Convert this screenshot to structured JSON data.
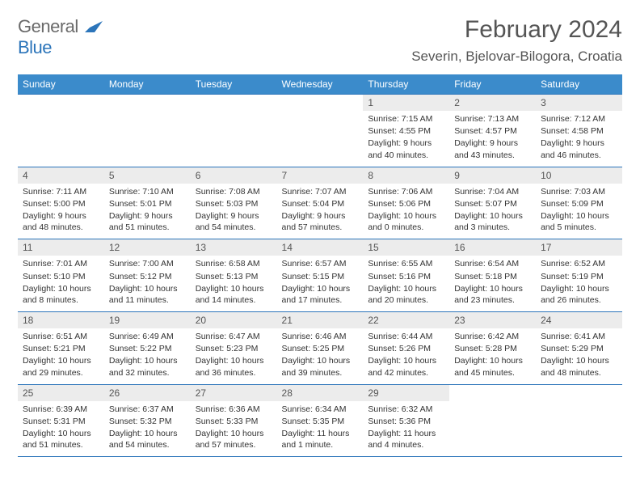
{
  "logo": {
    "text1": "General",
    "text2": "Blue"
  },
  "title": "February 2024",
  "location": "Severin, Bjelovar-Bilogora, Croatia",
  "colors": {
    "header_bg": "#3b8bcb",
    "border": "#2c75ba",
    "daynum_bg": "#ececec",
    "text": "#333333",
    "title_text": "#555555"
  },
  "day_labels": [
    "Sunday",
    "Monday",
    "Tuesday",
    "Wednesday",
    "Thursday",
    "Friday",
    "Saturday"
  ],
  "weeks": [
    [
      null,
      null,
      null,
      null,
      {
        "n": "1",
        "sr": "Sunrise: 7:15 AM",
        "ss": "Sunset: 4:55 PM",
        "dl": "Daylight: 9 hours and 40 minutes."
      },
      {
        "n": "2",
        "sr": "Sunrise: 7:13 AM",
        "ss": "Sunset: 4:57 PM",
        "dl": "Daylight: 9 hours and 43 minutes."
      },
      {
        "n": "3",
        "sr": "Sunrise: 7:12 AM",
        "ss": "Sunset: 4:58 PM",
        "dl": "Daylight: 9 hours and 46 minutes."
      }
    ],
    [
      {
        "n": "4",
        "sr": "Sunrise: 7:11 AM",
        "ss": "Sunset: 5:00 PM",
        "dl": "Daylight: 9 hours and 48 minutes."
      },
      {
        "n": "5",
        "sr": "Sunrise: 7:10 AM",
        "ss": "Sunset: 5:01 PM",
        "dl": "Daylight: 9 hours and 51 minutes."
      },
      {
        "n": "6",
        "sr": "Sunrise: 7:08 AM",
        "ss": "Sunset: 5:03 PM",
        "dl": "Daylight: 9 hours and 54 minutes."
      },
      {
        "n": "7",
        "sr": "Sunrise: 7:07 AM",
        "ss": "Sunset: 5:04 PM",
        "dl": "Daylight: 9 hours and 57 minutes."
      },
      {
        "n": "8",
        "sr": "Sunrise: 7:06 AM",
        "ss": "Sunset: 5:06 PM",
        "dl": "Daylight: 10 hours and 0 minutes."
      },
      {
        "n": "9",
        "sr": "Sunrise: 7:04 AM",
        "ss": "Sunset: 5:07 PM",
        "dl": "Daylight: 10 hours and 3 minutes."
      },
      {
        "n": "10",
        "sr": "Sunrise: 7:03 AM",
        "ss": "Sunset: 5:09 PM",
        "dl": "Daylight: 10 hours and 5 minutes."
      }
    ],
    [
      {
        "n": "11",
        "sr": "Sunrise: 7:01 AM",
        "ss": "Sunset: 5:10 PM",
        "dl": "Daylight: 10 hours and 8 minutes."
      },
      {
        "n": "12",
        "sr": "Sunrise: 7:00 AM",
        "ss": "Sunset: 5:12 PM",
        "dl": "Daylight: 10 hours and 11 minutes."
      },
      {
        "n": "13",
        "sr": "Sunrise: 6:58 AM",
        "ss": "Sunset: 5:13 PM",
        "dl": "Daylight: 10 hours and 14 minutes."
      },
      {
        "n": "14",
        "sr": "Sunrise: 6:57 AM",
        "ss": "Sunset: 5:15 PM",
        "dl": "Daylight: 10 hours and 17 minutes."
      },
      {
        "n": "15",
        "sr": "Sunrise: 6:55 AM",
        "ss": "Sunset: 5:16 PM",
        "dl": "Daylight: 10 hours and 20 minutes."
      },
      {
        "n": "16",
        "sr": "Sunrise: 6:54 AM",
        "ss": "Sunset: 5:18 PM",
        "dl": "Daylight: 10 hours and 23 minutes."
      },
      {
        "n": "17",
        "sr": "Sunrise: 6:52 AM",
        "ss": "Sunset: 5:19 PM",
        "dl": "Daylight: 10 hours and 26 minutes."
      }
    ],
    [
      {
        "n": "18",
        "sr": "Sunrise: 6:51 AM",
        "ss": "Sunset: 5:21 PM",
        "dl": "Daylight: 10 hours and 29 minutes."
      },
      {
        "n": "19",
        "sr": "Sunrise: 6:49 AM",
        "ss": "Sunset: 5:22 PM",
        "dl": "Daylight: 10 hours and 32 minutes."
      },
      {
        "n": "20",
        "sr": "Sunrise: 6:47 AM",
        "ss": "Sunset: 5:23 PM",
        "dl": "Daylight: 10 hours and 36 minutes."
      },
      {
        "n": "21",
        "sr": "Sunrise: 6:46 AM",
        "ss": "Sunset: 5:25 PM",
        "dl": "Daylight: 10 hours and 39 minutes."
      },
      {
        "n": "22",
        "sr": "Sunrise: 6:44 AM",
        "ss": "Sunset: 5:26 PM",
        "dl": "Daylight: 10 hours and 42 minutes."
      },
      {
        "n": "23",
        "sr": "Sunrise: 6:42 AM",
        "ss": "Sunset: 5:28 PM",
        "dl": "Daylight: 10 hours and 45 minutes."
      },
      {
        "n": "24",
        "sr": "Sunrise: 6:41 AM",
        "ss": "Sunset: 5:29 PM",
        "dl": "Daylight: 10 hours and 48 minutes."
      }
    ],
    [
      {
        "n": "25",
        "sr": "Sunrise: 6:39 AM",
        "ss": "Sunset: 5:31 PM",
        "dl": "Daylight: 10 hours and 51 minutes."
      },
      {
        "n": "26",
        "sr": "Sunrise: 6:37 AM",
        "ss": "Sunset: 5:32 PM",
        "dl": "Daylight: 10 hours and 54 minutes."
      },
      {
        "n": "27",
        "sr": "Sunrise: 6:36 AM",
        "ss": "Sunset: 5:33 PM",
        "dl": "Daylight: 10 hours and 57 minutes."
      },
      {
        "n": "28",
        "sr": "Sunrise: 6:34 AM",
        "ss": "Sunset: 5:35 PM",
        "dl": "Daylight: 11 hours and 1 minute."
      },
      {
        "n": "29",
        "sr": "Sunrise: 6:32 AM",
        "ss": "Sunset: 5:36 PM",
        "dl": "Daylight: 11 hours and 4 minutes."
      },
      null,
      null
    ]
  ]
}
